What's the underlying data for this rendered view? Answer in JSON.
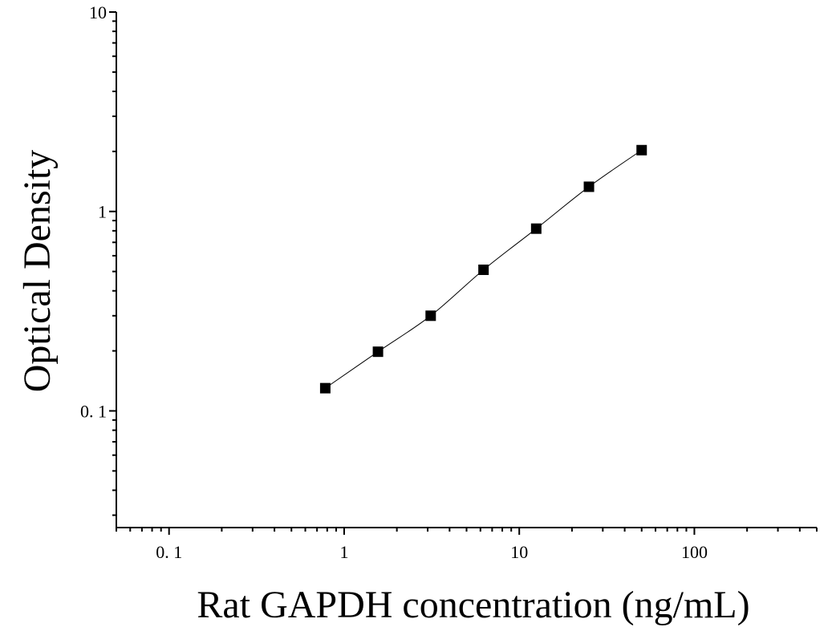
{
  "chart_data": {
    "type": "scatter",
    "xlabel": "Rat GAPDH concentration (ng/mL)",
    "ylabel": "Optical Density",
    "xscale": "log",
    "yscale": "log",
    "xlim": [
      0.05,
      500
    ],
    "ylim": [
      0.026,
      10
    ],
    "x_ticks": [
      0.1,
      1,
      10,
      100
    ],
    "x_tick_labels": [
      "0. 1",
      "1",
      "10",
      "100"
    ],
    "y_ticks": [
      0.1,
      1,
      10
    ],
    "y_tick_labels": [
      "0. 1",
      "1",
      "10"
    ],
    "grid": false,
    "legend": "none",
    "fit_curve": true,
    "series": [
      {
        "x": [
          0.78,
          1.56,
          3.12,
          6.25,
          12.5,
          25,
          50
        ],
        "y": [
          0.13,
          0.198,
          0.3,
          0.51,
          0.82,
          1.33,
          2.03
        ]
      }
    ],
    "colors": {
      "marker": "#000000",
      "line": "#000000",
      "axis": "#000000"
    }
  }
}
